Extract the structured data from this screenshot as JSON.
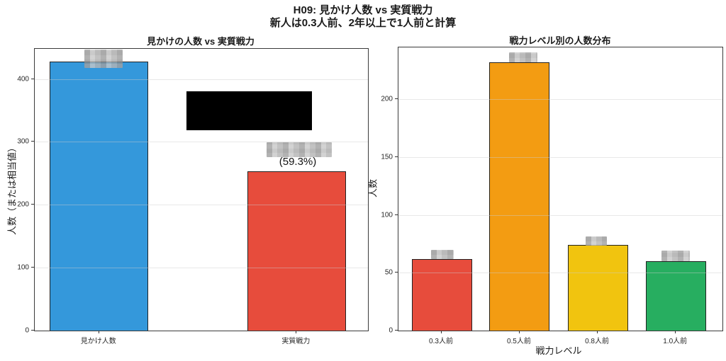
{
  "figure": {
    "title": "H09: 見かけ人数 vs 実質戦力",
    "subtitle": "新人は0.3人前、2年以上で1人前と計算"
  },
  "chart_data": [
    {
      "type": "bar",
      "title": "見かけの人数 vs 実質戦力",
      "categories": [
        "見かけ人数",
        "実質戦力"
      ],
      "values": [
        428,
        253.8
      ],
      "bar_colors": [
        "#3498db",
        "#e74c3c"
      ],
      "xlabel": "",
      "ylabel": "人数（または相当値）",
      "ylim": [
        0,
        448
      ],
      "yticks": [
        0,
        100,
        200,
        300,
        400
      ],
      "grid": true,
      "legend": "none",
      "annotations": [
        {
          "text": "(59.3%)",
          "target": "実質戦力"
        }
      ],
      "value_labels": "redacted"
    },
    {
      "type": "bar",
      "title": "戦力レベル別の人数分布",
      "categories": [
        "0.3人前",
        "0.5人前",
        "0.8人前",
        "1.0人前"
      ],
      "values": [
        62,
        232,
        74,
        60
      ],
      "bar_colors": [
        "#e74c3c",
        "#f39c12",
        "#f1c40f",
        "#27ae60"
      ],
      "xlabel": "戦力レベル",
      "ylabel": "人数",
      "ylim": [
        0,
        245
      ],
      "yticks": [
        0,
        50,
        100,
        150,
        200
      ],
      "grid": true,
      "legend": "none",
      "value_labels": "redacted"
    }
  ],
  "redactions": {
    "black_box_on_left_chart": true,
    "bar_value_labels_pixelated": true
  }
}
